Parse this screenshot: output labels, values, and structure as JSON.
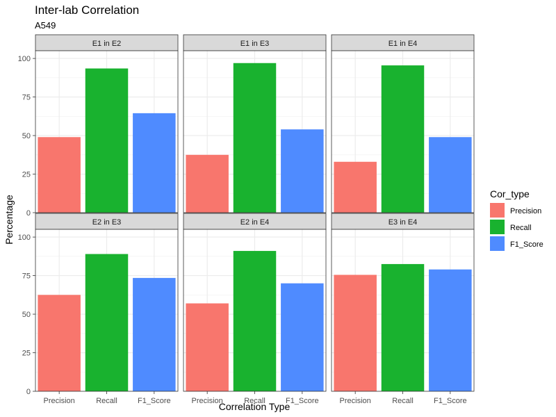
{
  "chart_data": {
    "type": "bar",
    "title": "Inter-lab Correlation",
    "subtitle": "A549",
    "xlabel": "Correlation Type",
    "ylabel": "Percentage",
    "ylim": [
      0,
      105
    ],
    "yticks": [
      0,
      25,
      50,
      75,
      100
    ],
    "categories": [
      "Precision",
      "Recall",
      "F1_Score"
    ],
    "grid": true,
    "legend": {
      "title": "Cor_type",
      "placement": "right",
      "entries": [
        "Precision",
        "Recall",
        "F1_Score"
      ]
    },
    "colors": {
      "Precision": "#F8766D",
      "Recall": "#19B22F",
      "F1_Score": "#4F8BFF"
    },
    "facets": [
      {
        "label": "E1 in E2",
        "values": [
          49,
          93.5,
          64.5
        ]
      },
      {
        "label": "E1 in E3",
        "values": [
          37.5,
          97,
          54
        ]
      },
      {
        "label": "E1 in E4",
        "values": [
          33,
          95.5,
          49
        ]
      },
      {
        "label": "E2 in E3",
        "values": [
          62.5,
          89,
          73.5
        ]
      },
      {
        "label": "E2 in E4",
        "values": [
          57,
          91,
          70
        ]
      },
      {
        "label": "E3 in E4",
        "values": [
          75.5,
          82.5,
          79
        ]
      }
    ]
  }
}
